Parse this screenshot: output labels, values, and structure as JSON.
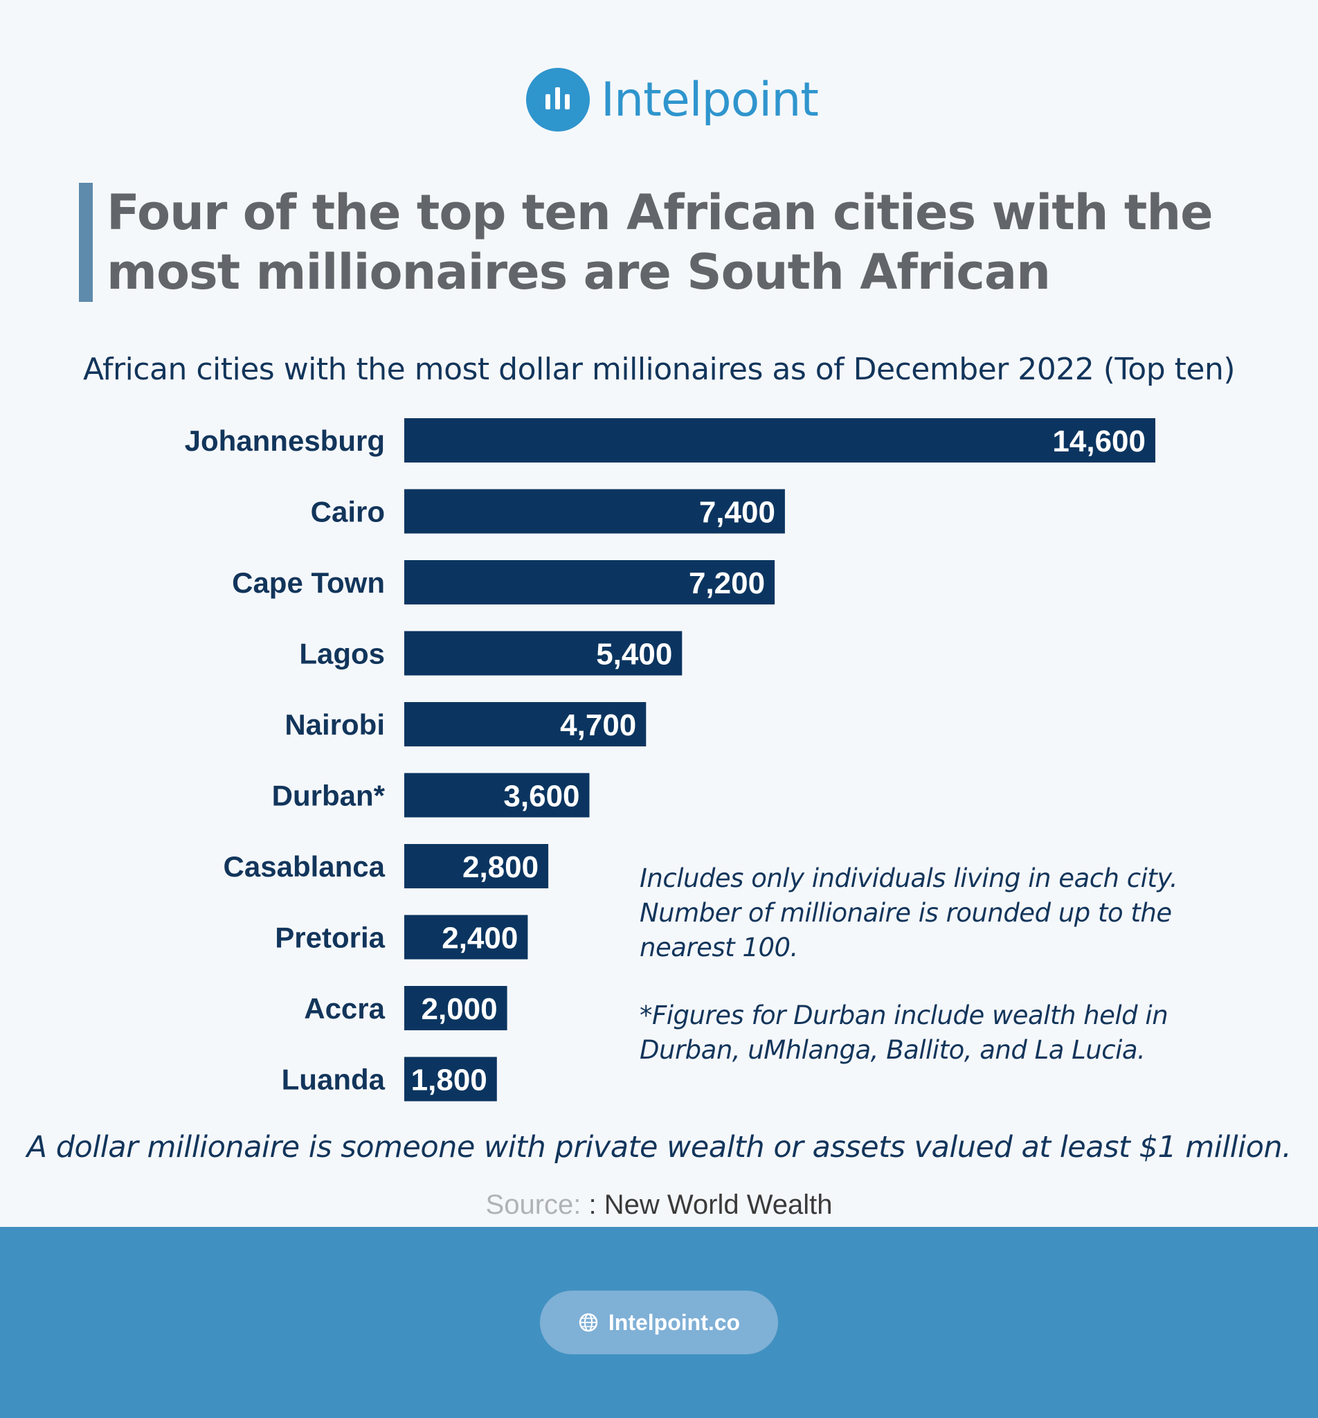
{
  "brand": {
    "name": "Intelpoint",
    "site": "Intelpoint.co"
  },
  "headline": "Four of the top ten African cities with the most millionaires are South African",
  "notes": {
    "line1": "Includes only individuals living in each city. Number of millionaire is rounded up to the nearest 100.",
    "line2": "*Figures for Durban include wealth held in Durban, uMhlanga, Ballito, and La Lucia."
  },
  "definition": "A dollar millionaire is someone with private wealth or assets valued at least $1 million.",
  "source": {
    "label": "Source:",
    "text": ": New World Wealth"
  },
  "colors": {
    "bar": "#0b3560",
    "accent": "#2f95cd",
    "footer": "#4091c1",
    "title_rule": "#5e8aac"
  },
  "chart_data": {
    "type": "bar",
    "orientation": "horizontal",
    "title": "African cities with the most dollar millionaires as of December 2022 (Top ten)",
    "categories": [
      "Johannesburg",
      "Cairo",
      "Cape Town",
      "Lagos",
      "Nairobi",
      "Durban*",
      "Casablanca",
      "Pretoria",
      "Accra",
      "Luanda"
    ],
    "values": [
      14600,
      7400,
      7200,
      5400,
      4700,
      3600,
      2800,
      2400,
      2000,
      1800
    ],
    "value_labels": [
      "14,600",
      "7,400",
      "7,200",
      "5,400",
      "4,700",
      "3,600",
      "2,800",
      "2,400",
      "2,000",
      "1,800"
    ],
    "xlim": [
      0,
      14600
    ],
    "grid": false,
    "legend": "none"
  }
}
